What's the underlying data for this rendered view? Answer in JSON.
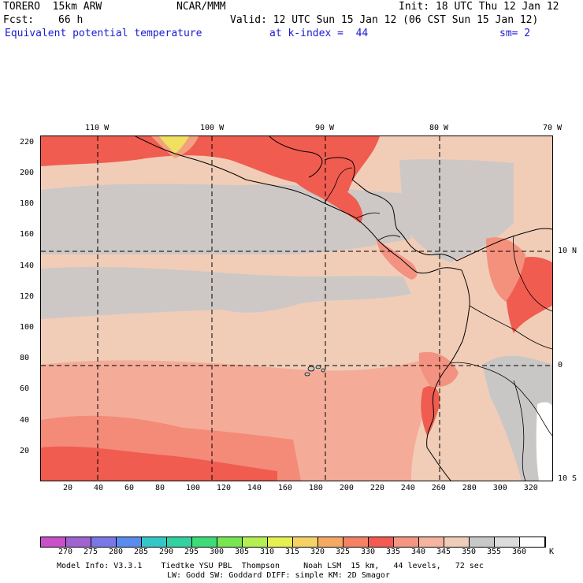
{
  "header": {
    "model": "TORERO  15km ARW",
    "center": "NCAR/MMM",
    "init": "Init: 18 UTC Thu 12 Jan 12",
    "fcst_label": "Fcst:",
    "fcst_value": "66 h",
    "valid": "Valid: 12 UTC Sun 15 Jan 12 (06 CST Sun 15 Jan 12)",
    "field": "Equivalent potential temperature",
    "level": "at k-index =  44",
    "smooth": "sm= 2"
  },
  "map": {
    "top_lon_labels": [
      "110 W",
      "100 W",
      "90 W",
      "80 W",
      "70 W"
    ],
    "right_lat_labels": [
      "10 N",
      "0",
      "10 S"
    ],
    "left_y_ticks": [
      "220",
      "200",
      "180",
      "160",
      "140",
      "120",
      "100",
      "80",
      "60",
      "40",
      "20"
    ],
    "bottom_x_ticks": [
      "20",
      "40",
      "60",
      "80",
      "100",
      "120",
      "140",
      "160",
      "180",
      "200",
      "220",
      "240",
      "260",
      "280",
      "300",
      "320"
    ],
    "grid_x_values": [
      20,
      40,
      60,
      80,
      100,
      120,
      140,
      160,
      180,
      200,
      220,
      240,
      260,
      280,
      300,
      320
    ],
    "grid_y_values": [
      20,
      40,
      60,
      80,
      100,
      120,
      140,
      160,
      180,
      200,
      220
    ],
    "domain_x_range": [
      1,
      334
    ],
    "domain_y_range": [
      1,
      224
    ]
  },
  "colorbar": {
    "labels": [
      "270",
      "275",
      "280",
      "285",
      "290",
      "295",
      "300",
      "305",
      "310",
      "315",
      "320",
      "325",
      "330",
      "335",
      "340",
      "345",
      "350",
      "355",
      "360"
    ],
    "unit": "K",
    "colors": [
      "#c850c8",
      "#a064d2",
      "#7a78e6",
      "#5a8cf0",
      "#32c8c8",
      "#32d2a0",
      "#3cdc78",
      "#78e650",
      "#b4f050",
      "#e6f050",
      "#f5d264",
      "#f5aa64",
      "#f58264",
      "#f55a50",
      "#f59682",
      "#f5b4a0",
      "#f0cdb9",
      "#c8c8c8",
      "#dcdcdc",
      "#ffffff"
    ]
  },
  "footer": {
    "line1": "Model Info: V3.3.1    Tiedtke YSU PBL  Thompson     Noah LSM  15 km,   44 levels,   72 sec",
    "line2": "LW: Godd SW: Goddard DIFF: simple KM: 2D Smagor"
  }
}
